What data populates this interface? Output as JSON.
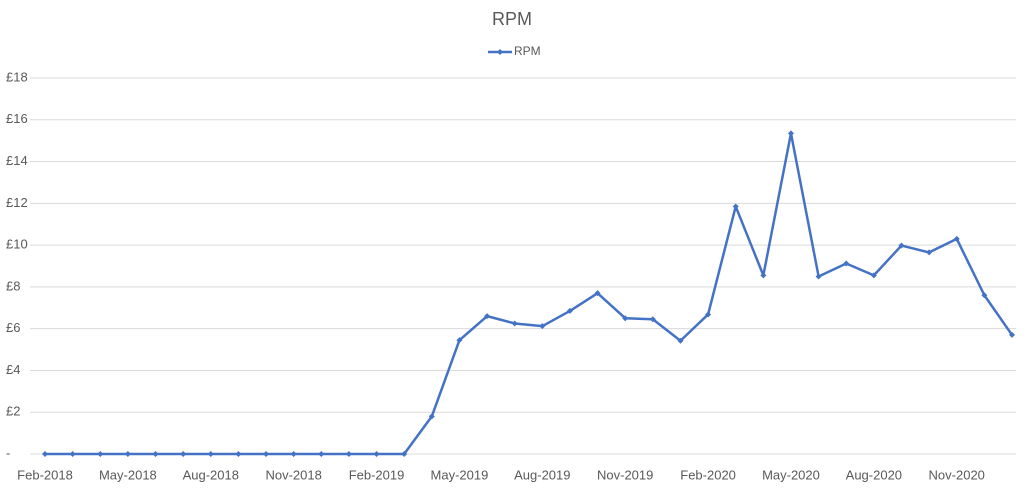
{
  "chart_data": {
    "type": "line",
    "title": "RPM",
    "categories": [
      "Feb-2018",
      null,
      null,
      "May-2018",
      null,
      null,
      "Aug-2018",
      null,
      null,
      "Nov-2018",
      null,
      null,
      "Feb-2019",
      null,
      null,
      "May-2019",
      null,
      null,
      "Aug-2019",
      null,
      null,
      "Nov-2019",
      null,
      null,
      "Feb-2020",
      null,
      null,
      "May-2020",
      null,
      null,
      "Aug-2020",
      null,
      null,
      "Nov-2020",
      null,
      null
    ],
    "series": [
      {
        "name": "RPM",
        "color": "#4472c4",
        "values": [
          0,
          0,
          0,
          0,
          0,
          0,
          0,
          0,
          0,
          0,
          0,
          0,
          0,
          0,
          1.8,
          5.45,
          6.6,
          6.25,
          6.12,
          6.85,
          7.7,
          6.5,
          6.45,
          5.42,
          6.68,
          11.85,
          8.55,
          15.35,
          8.5,
          9.12,
          8.55,
          9.98,
          9.65,
          10.3,
          7.6,
          5.7
        ]
      }
    ],
    "ylim": [
      0,
      18
    ],
    "yticks": [
      {
        "value": 0,
        "label": "-"
      },
      {
        "value": 2,
        "label": "£2"
      },
      {
        "value": 4,
        "label": "£4"
      },
      {
        "value": 6,
        "label": "£6"
      },
      {
        "value": 8,
        "label": "£8"
      },
      {
        "value": 10,
        "label": "£10"
      },
      {
        "value": 12,
        "label": "£12"
      },
      {
        "value": 14,
        "label": "£14"
      },
      {
        "value": 16,
        "label": "£16"
      },
      {
        "value": 18,
        "label": "£18"
      }
    ],
    "grid": true,
    "legend": "top"
  }
}
